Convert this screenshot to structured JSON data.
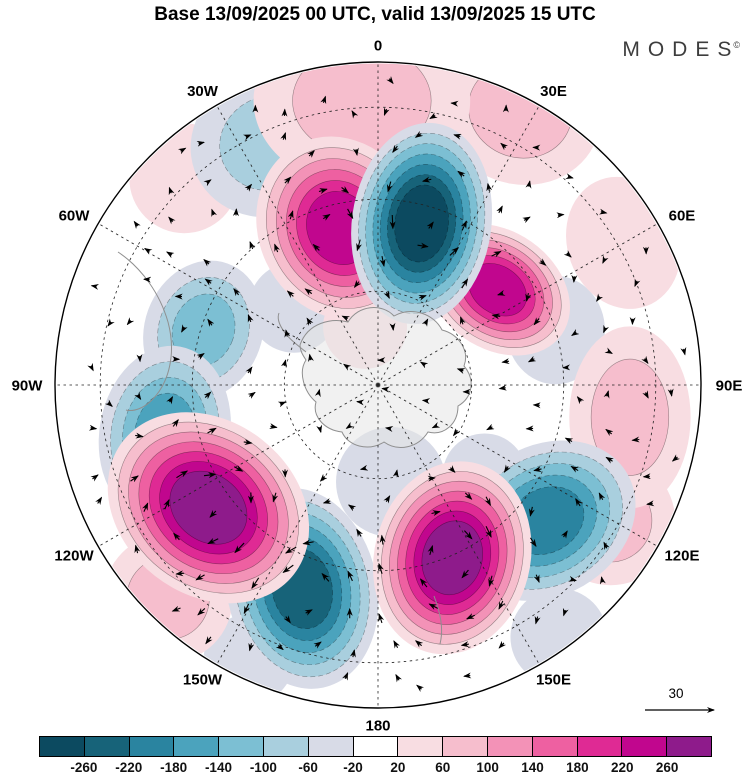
{
  "header": {
    "title": "Base 13/09/2025 00 UTC, valid 13/09/2025 15 UTC",
    "logo_text": "MODES",
    "logo_mark": "©"
  },
  "chart_data": {
    "type": "map-contour",
    "projection": "south polar stereographic",
    "title": "Base 13/09/2025 00 UTC, valid 13/09/2025 15 UTC",
    "longitude_labels": [
      "0",
      "30E",
      "60E",
      "90E",
      "120E",
      "150E",
      "180",
      "150W",
      "120W",
      "90W",
      "60W",
      "30W"
    ],
    "latitude_circle_fractions": [
      0.29,
      0.575,
      0.86
    ],
    "colorbar": {
      "boundary_labels": [
        "-260",
        "-220",
        "-180",
        "-140",
        "-100",
        "-60",
        "-20",
        "20",
        "60",
        "100",
        "140",
        "180",
        "220",
        "260"
      ],
      "segment_colors": [
        "#0c4a60",
        "#176379",
        "#2a84a0",
        "#4ba3bd",
        "#7cbfd3",
        "#a9cfde",
        "#d8dbe7",
        "#ffffff",
        "#f8dde2",
        "#f6becd",
        "#f392b7",
        "#ee60a1",
        "#df2a94",
        "#c1068e",
        "#8e1b8b"
      ]
    },
    "reference_arrow": {
      "label": "30"
    },
    "anomaly_centers": [
      {
        "x": -0.118,
        "y": -0.486,
        "v": 240,
        "r": 0.27,
        "ar": 1.15,
        "rot": -25
      },
      {
        "x": 0.135,
        "y": -0.5,
        "v": -280,
        "r": 0.26,
        "ar": 1.45,
        "rot": 8
      },
      {
        "x": 0.37,
        "y": -0.295,
        "v": 220,
        "r": 0.21,
        "ar": 0.75,
        "rot": 35
      },
      {
        "x": -0.05,
        "y": -0.88,
        "v": 70,
        "r": 0.3,
        "ar": 0.8,
        "rot": 0
      },
      {
        "x": 0.44,
        "y": -0.85,
        "v": 60,
        "r": 0.24,
        "ar": 0.9,
        "rot": 20
      },
      {
        "x": -0.33,
        "y": -0.75,
        "v": -60,
        "r": 0.24,
        "ar": 0.9,
        "rot": -20
      },
      {
        "x": -0.54,
        "y": -0.17,
        "v": -100,
        "r": 0.2,
        "ar": 1.2,
        "rot": 20
      },
      {
        "x": -0.66,
        "y": 0.15,
        "v": -140,
        "r": 0.235,
        "ar": 1.35,
        "rot": 10
      },
      {
        "x": -0.525,
        "y": 0.38,
        "v": 280,
        "r": 0.3,
        "ar": 0.8,
        "rot": 38
      },
      {
        "x": -0.235,
        "y": 0.63,
        "v": -240,
        "r": 0.27,
        "ar": 1.35,
        "rot": -12
      },
      {
        "x": 0.23,
        "y": 0.535,
        "v": 260,
        "r": 0.27,
        "ar": 1.25,
        "rot": 14
      },
      {
        "x": 0.52,
        "y": 0.42,
        "v": -190,
        "r": 0.26,
        "ar": 0.8,
        "rot": -30
      },
      {
        "x": 0.78,
        "y": 0.1,
        "v": 90,
        "r": 0.23,
        "ar": 1.5,
        "rot": 0
      },
      {
        "x": 0.76,
        "y": -0.44,
        "v": 50,
        "r": 0.19,
        "ar": 1.2,
        "rot": -20
      },
      {
        "x": -0.65,
        "y": 0.66,
        "v": 60,
        "r": 0.2,
        "ar": 1.0,
        "rot": 0
      },
      {
        "x": 0.04,
        "y": 0.3,
        "v": -40,
        "r": 0.17,
        "ar": 1.0,
        "rot": 0
      },
      {
        "x": 0.55,
        "y": -0.17,
        "v": -40,
        "r": 0.16,
        "ar": 1.1,
        "rot": 0
      },
      {
        "x": -0.6,
        "y": -0.64,
        "v": 40,
        "r": 0.17,
        "ar": 1.0,
        "rot": 0
      },
      {
        "x": 0.56,
        "y": 0.78,
        "v": -40,
        "r": 0.15,
        "ar": 1.0,
        "rot": 0
      },
      {
        "x": -0.4,
        "y": 0.85,
        "v": -50,
        "r": 0.14,
        "ar": 1.0,
        "rot": 0
      },
      {
        "x": 0.72,
        "y": 0.42,
        "v": 60,
        "r": 0.2,
        "ar": 1.0,
        "rot": 0
      },
      {
        "x": 0.33,
        "y": 0.28,
        "v": -40,
        "r": 0.13,
        "ar": 1.0,
        "rot": 0
      },
      {
        "x": -0.26,
        "y": -0.24,
        "v": -30,
        "r": 0.14,
        "ar": 1.0,
        "rot": 0
      },
      {
        "x": -0.04,
        "y": -0.18,
        "v": 30,
        "r": 0.13,
        "ar": 1.0,
        "rot": 0
      }
    ]
  }
}
